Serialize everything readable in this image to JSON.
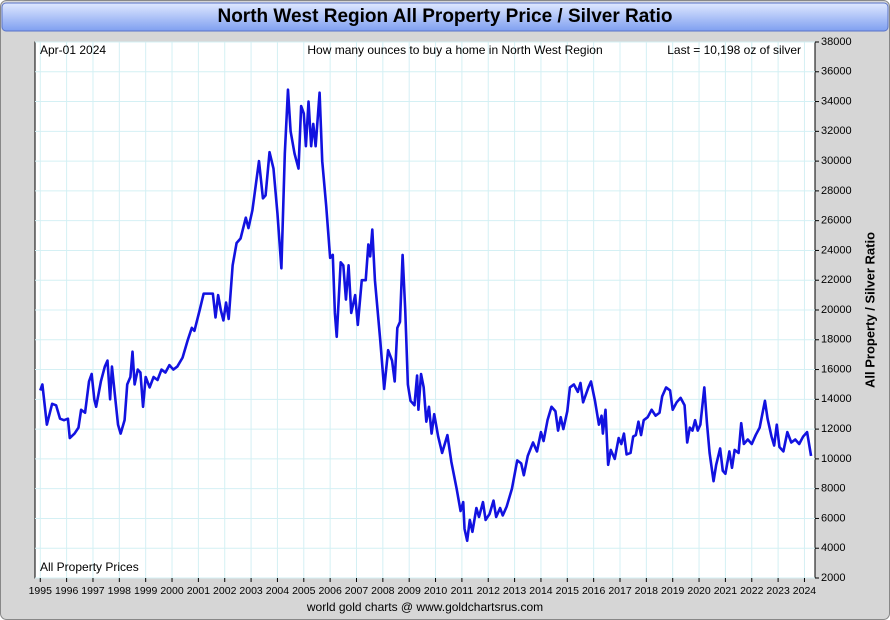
{
  "chart_data": {
    "type": "line",
    "title": "North West Region All Property Price / Silver Ratio",
    "date_label": "Apr-01  2024",
    "subtitle": "How many ounces to buy a home in North West Region",
    "last_label": "Last = 10,198 oz of silver",
    "series_label": "All Property Prices",
    "ylabel": "All Property / Silver Ratio",
    "source": "world gold charts @ www.goldchartsrus.com",
    "color": "#1212e0",
    "grid": true,
    "y_axis_side": "right",
    "xlim": [
      1994.8,
      2024.4
    ],
    "xticks": [
      1995,
      1996,
      1997,
      1998,
      1999,
      2000,
      2001,
      2002,
      2003,
      2004,
      2005,
      2006,
      2007,
      2008,
      2009,
      2010,
      2011,
      2012,
      2013,
      2014,
      2015,
      2016,
      2017,
      2018,
      2019,
      2020,
      2021,
      2022,
      2023,
      2024
    ],
    "ylim": [
      2000,
      38000
    ],
    "yticks": [
      2000,
      4000,
      6000,
      8000,
      10000,
      12000,
      14000,
      16000,
      18000,
      20000,
      22000,
      24000,
      26000,
      28000,
      30000,
      32000,
      34000,
      36000,
      38000
    ],
    "x": [
      1995.0,
      1995.08,
      1995.25,
      1995.45,
      1995.6,
      1995.75,
      1995.9,
      1996.05,
      1996.12,
      1996.3,
      1996.45,
      1996.55,
      1996.7,
      1996.85,
      1996.95,
      1997.05,
      1997.12,
      1997.3,
      1997.45,
      1997.55,
      1997.65,
      1997.72,
      1997.82,
      1997.95,
      1998.05,
      1998.2,
      1998.3,
      1998.42,
      1998.5,
      1998.58,
      1998.7,
      1998.8,
      1998.9,
      1999.0,
      1999.15,
      1999.3,
      1999.45,
      1999.6,
      1999.75,
      1999.9,
      2000.05,
      2000.2,
      2000.4,
      2000.6,
      2000.75,
      2000.85,
      2001.05,
      2001.2,
      2001.55,
      2001.65,
      2001.75,
      2001.85,
      2001.95,
      2002.05,
      2002.15,
      2002.3,
      2002.45,
      2002.6,
      2002.8,
      2002.9,
      2003.05,
      2003.3,
      2003.45,
      2003.55,
      2003.7,
      2003.85,
      2004.0,
      2004.15,
      2004.28,
      2004.4,
      2004.5,
      2004.65,
      2004.8,
      2004.9,
      2005.0,
      2005.08,
      2005.18,
      2005.28,
      2005.36,
      2005.45,
      2005.6,
      2005.7,
      2005.85,
      2006.0,
      2006.1,
      2006.18,
      2006.25,
      2006.4,
      2006.5,
      2006.6,
      2006.7,
      2006.8,
      2006.95,
      2007.05,
      2007.2,
      2007.35,
      2007.45,
      2007.52,
      2007.6,
      2007.7,
      2007.9,
      2008.05,
      2008.2,
      2008.35,
      2008.45,
      2008.55,
      2008.65,
      2008.75,
      2008.85,
      2008.95,
      2009.05,
      2009.2,
      2009.3,
      2009.35,
      2009.45,
      2009.55,
      2009.65,
      2009.75,
      2009.85,
      2009.95,
      2010.1,
      2010.25,
      2010.45,
      2010.6,
      2010.8,
      2010.95,
      2011.05,
      2011.1,
      2011.2,
      2011.3,
      2011.4,
      2011.55,
      2011.65,
      2011.8,
      2011.9,
      2012.05,
      2012.2,
      2012.3,
      2012.45,
      2012.55,
      2012.7,
      2012.9,
      2013.1,
      2013.25,
      2013.35,
      2013.5,
      2013.7,
      2013.85,
      2014.0,
      2014.1,
      2014.25,
      2014.4,
      2014.55,
      2014.65,
      2014.75,
      2014.85,
      2015.0,
      2015.1,
      2015.25,
      2015.4,
      2015.5,
      2015.6,
      2015.8,
      2015.9,
      2016.05,
      2016.2,
      2016.3,
      2016.35,
      2016.45,
      2016.55,
      2016.65,
      2016.8,
      2016.95,
      2017.05,
      2017.15,
      2017.25,
      2017.4,
      2017.5,
      2017.6,
      2017.7,
      2017.8,
      2017.9,
      2018.05,
      2018.2,
      2018.35,
      2018.5,
      2018.6,
      2018.75,
      2018.9,
      2019.0,
      2019.15,
      2019.3,
      2019.45,
      2019.55,
      2019.65,
      2019.75,
      2019.85,
      2019.95,
      2020.05,
      2020.2,
      2020.3,
      2020.4,
      2020.55,
      2020.65,
      2020.8,
      2020.9,
      2021.0,
      2021.15,
      2021.25,
      2021.35,
      2021.5,
      2021.6,
      2021.7,
      2021.85,
      2022.0,
      2022.15,
      2022.3,
      2022.5,
      2022.6,
      2022.75,
      2022.85,
      2022.95,
      2023.05,
      2023.2,
      2023.35,
      2023.5,
      2023.65,
      2023.8,
      2023.95,
      2024.1,
      2024.25
    ],
    "values": [
      14600,
      15000,
      12300,
      13700,
      13600,
      12700,
      12600,
      12700,
      11400,
      11700,
      12100,
      13300,
      13100,
      15200,
      15700,
      14000,
      13500,
      15200,
      16200,
      16600,
      14000,
      16200,
      14500,
      12300,
      11700,
      12600,
      15000,
      15500,
      17200,
      15000,
      16000,
      15800,
      13500,
      15500,
      14800,
      15500,
      15300,
      16000,
      15800,
      16300,
      16000,
      16200,
      16800,
      18000,
      18800,
      18600,
      20000,
      21100,
      21100,
      19500,
      21000,
      20000,
      19300,
      20500,
      19400,
      23000,
      24500,
      24800,
      26200,
      25500,
      26700,
      30000,
      27500,
      27700,
      30600,
      29500,
      26500,
      22800,
      30500,
      34800,
      32000,
      30500,
      29500,
      33700,
      33200,
      31000,
      34000,
      31000,
      32500,
      31000,
      34600,
      30000,
      27000,
      23500,
      23700,
      19800,
      18200,
      23200,
      23000,
      20700,
      23000,
      19800,
      21000,
      19000,
      22000,
      22000,
      24400,
      23600,
      25400,
      22000,
      18000,
      14700,
      17300,
      16600,
      15200,
      18800,
      19200,
      23700,
      20000,
      15000,
      13900,
      13600,
      15600,
      13300,
      15700,
      14800,
      12500,
      13500,
      11700,
      13000,
      11500,
      10400,
      11600,
      9800,
      8000,
      6500,
      7100,
      5300,
      4500,
      5900,
      5100,
      6700,
      6100,
      7100,
      5900,
      6300,
      7200,
      6100,
      6700,
      6200,
      6800,
      8000,
      9900,
      9700,
      8900,
      10200,
      11100,
      10500,
      11800,
      11200,
      12600,
      13500,
      13200,
      11900,
      12800,
      12000,
      13200,
      14800,
      15000,
      14500,
      15100,
      13800,
      14800,
      15200,
      13900,
      12300,
      12900,
      11700,
      13300,
      9600,
      10600,
      10000,
      11400,
      11000,
      11700,
      10300,
      10400,
      11500,
      11600,
      12500,
      11600,
      12600,
      12800,
      13300,
      12900,
      13100,
      14200,
      14800,
      14600,
      13300,
      13800,
      14100,
      13600,
      11100,
      12100,
      11900,
      12600,
      11900,
      12300,
      14800,
      12400,
      10400,
      8500,
      9600,
      10700,
      9200,
      9000,
      10500,
      9400,
      10600,
      10400,
      12400,
      11000,
      11300,
      11000,
      11600,
      12100,
      13900,
      12700,
      11500,
      10900,
      12300,
      10800,
      10500,
      11800,
      11100,
      11300,
      11000,
      11500,
      11800,
      10198
    ]
  }
}
